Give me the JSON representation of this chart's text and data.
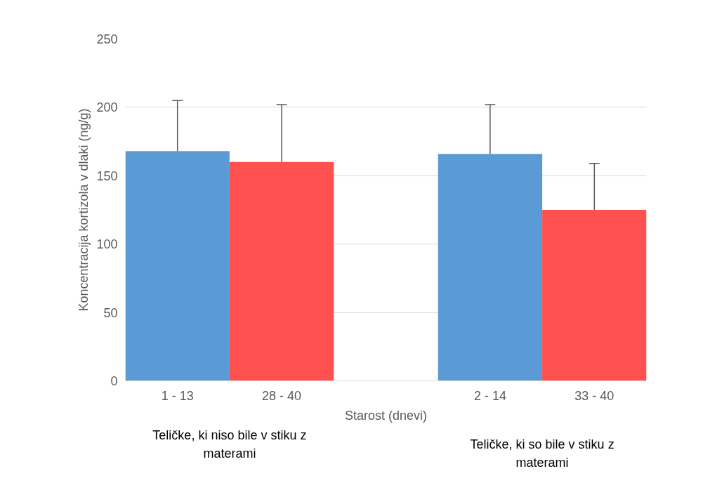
{
  "chart_data": {
    "type": "bar",
    "ylabel": "Koncentracija kortizola v dlaki (ng/g)",
    "xlabel": "Starost (dnevi)",
    "categories": [
      "1 - 13",
      "28 - 40",
      null,
      "2 - 14",
      "33 - 40"
    ],
    "values": [
      168,
      160,
      null,
      166,
      125
    ],
    "colors": [
      "#5b9bd5",
      "#ff5050",
      null,
      "#5b9bd5",
      "#ff5050"
    ],
    "errors": [
      [
        168,
        205
      ],
      [
        160,
        202
      ],
      null,
      [
        166,
        202
      ],
      [
        125,
        159
      ]
    ],
    "ylim": [
      0,
      250
    ],
    "yticks": [
      0,
      50,
      100,
      150,
      200,
      250
    ],
    "grid": "y",
    "annotations": [
      "Teličke, ki niso bile v stiku z materami",
      "Teličke, ki so bile v stiku z materami"
    ]
  }
}
